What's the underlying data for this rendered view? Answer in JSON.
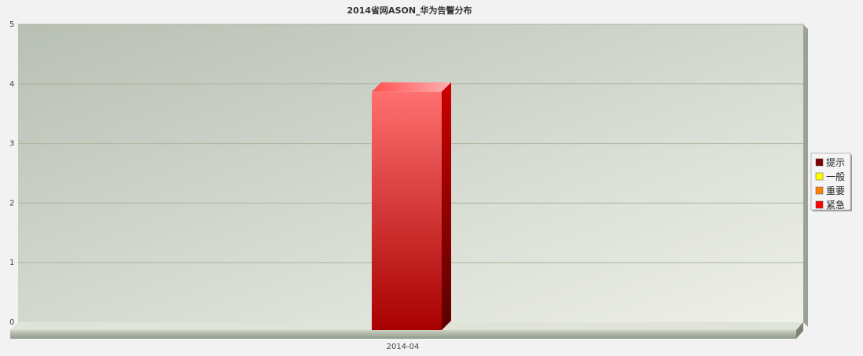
{
  "chart_data": {
    "type": "bar",
    "title": "2014省网ASON_华为告警分布",
    "categories": [
      "2014-04"
    ],
    "ylim": [
      0,
      5
    ],
    "yticks": [
      0,
      1,
      2,
      3,
      4,
      5
    ],
    "grid": true,
    "legend_position": "right",
    "series": [
      {
        "name": "提示",
        "color": "#800000",
        "values": [
          0
        ]
      },
      {
        "name": "一般",
        "color": "#ffff00",
        "values": [
          0
        ]
      },
      {
        "name": "重要",
        "color": "#ff8000",
        "values": [
          0
        ]
      },
      {
        "name": "紧急",
        "color": "#ff0000",
        "values": [
          4
        ]
      }
    ]
  }
}
